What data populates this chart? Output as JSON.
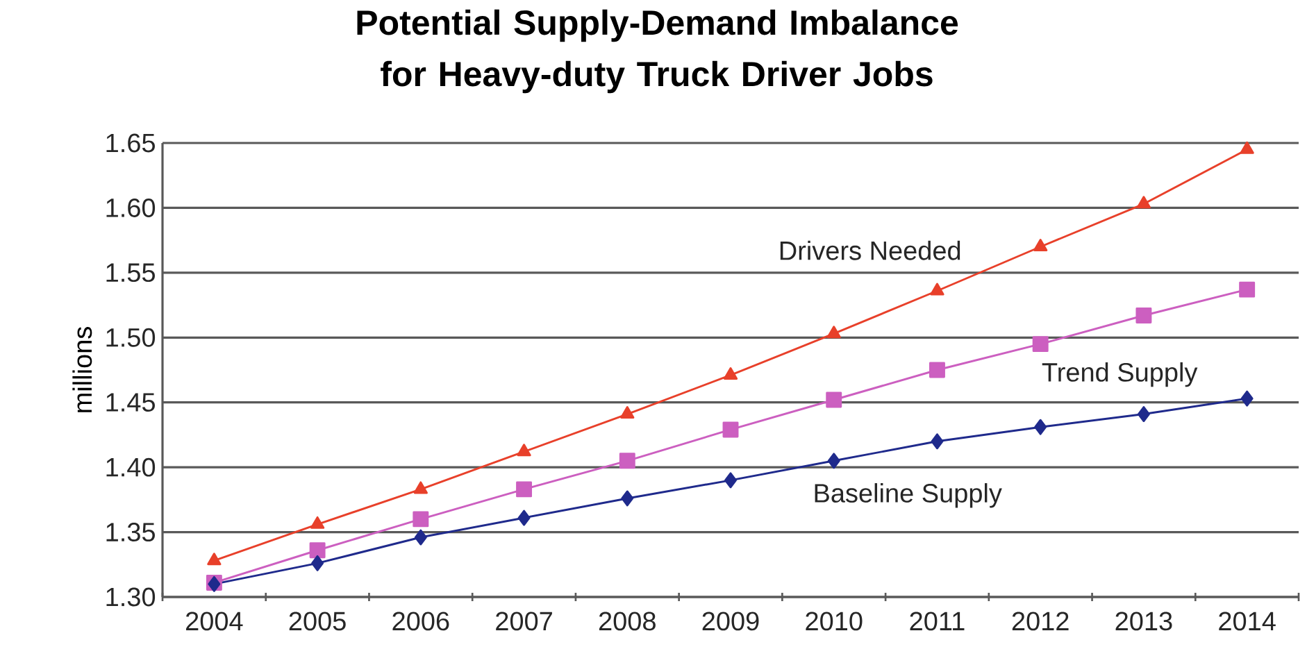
{
  "chart_data": {
    "type": "line",
    "title": "Potential Supply-Demand Imbalance for Heavy-duty Truck Driver Jobs",
    "ylabel": "millions",
    "categories": [
      "2004",
      "2005",
      "2006",
      "2007",
      "2008",
      "2009",
      "2010",
      "2011",
      "2012",
      "2013",
      "2014"
    ],
    "ylim": [
      1.3,
      1.65
    ],
    "yticks": [
      {
        "value": 1.3,
        "label": "1.30"
      },
      {
        "value": 1.35,
        "label": "1.35"
      },
      {
        "value": 1.4,
        "label": "1.40"
      },
      {
        "value": 1.45,
        "label": "1.45"
      },
      {
        "value": 1.5,
        "label": "1.50"
      },
      {
        "value": 1.55,
        "label": "1.55"
      },
      {
        "value": 1.6,
        "label": "1.60"
      },
      {
        "value": 1.65,
        "label": "1.65"
      }
    ],
    "grid": "y",
    "legend": false,
    "series": [
      {
        "name": "Drivers Needed",
        "color": "#e8402a",
        "marker": "triangle",
        "values": [
          1.328,
          1.356,
          1.383,
          1.412,
          1.441,
          1.471,
          1.503,
          1.536,
          1.57,
          1.603,
          1.645
        ]
      },
      {
        "name": "Trend Supply",
        "color": "#cc5fc0",
        "marker": "square",
        "values": [
          1.311,
          1.336,
          1.36,
          1.383,
          1.405,
          1.429,
          1.452,
          1.475,
          1.495,
          1.517,
          1.537
        ]
      },
      {
        "name": "Baseline Supply",
        "color": "#1f2a8c",
        "marker": "diamond",
        "values": [
          1.31,
          1.326,
          1.346,
          1.361,
          1.376,
          1.39,
          1.405,
          1.42,
          1.431,
          1.441,
          1.453
        ]
      }
    ]
  }
}
